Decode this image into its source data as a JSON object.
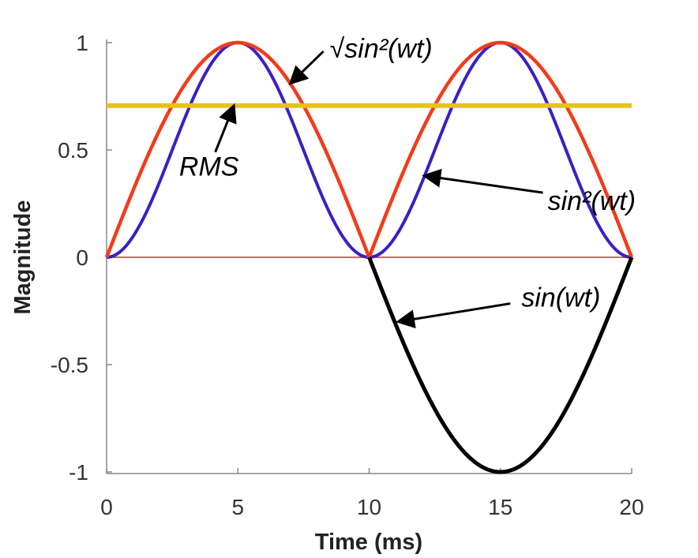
{
  "chart_data": {
    "type": "line",
    "xlabel": "Time (ms)",
    "ylabel": "Magnitude",
    "xlim": [
      0,
      20
    ],
    "ylim": [
      -1,
      1
    ],
    "x_ticks": [
      "0",
      "5",
      "10",
      "15",
      "20"
    ],
    "y_ticks": [
      "1",
      "0.5",
      "0",
      "-0.5",
      "-1"
    ],
    "period_ms": 20,
    "grid": false,
    "series": [
      {
        "name": "sin(wt)",
        "color": "#000000",
        "x": [
          10,
          10.5,
          11,
          11.5,
          12,
          12.5,
          13,
          13.5,
          14,
          14.5,
          15,
          15.5,
          16,
          16.5,
          17,
          17.5,
          18,
          18.5,
          19,
          19.5,
          20
        ],
        "y": [
          0,
          -0.156,
          -0.309,
          -0.454,
          -0.588,
          -0.707,
          -0.809,
          -0.891,
          -0.951,
          -0.988,
          -1,
          -0.988,
          -0.951,
          -0.891,
          -0.809,
          -0.707,
          -0.588,
          -0.454,
          -0.309,
          -0.156,
          0
        ]
      },
      {
        "name": "sin²(wt)",
        "color": "#3b1fc4",
        "x": [
          0,
          1,
          2,
          3,
          4,
          5,
          6,
          7,
          8,
          9,
          10,
          11,
          12,
          13,
          14,
          15,
          16,
          17,
          18,
          19,
          20
        ],
        "y": [
          0,
          0.095,
          0.345,
          0.655,
          0.905,
          1,
          0.905,
          0.655,
          0.345,
          0.095,
          0,
          0.095,
          0.345,
          0.655,
          0.905,
          1,
          0.905,
          0.655,
          0.345,
          0.095,
          0
        ]
      },
      {
        "name": "√sin²(wt)",
        "color": "#f23b1a",
        "x": [
          0,
          1,
          2,
          3,
          4,
          5,
          6,
          7,
          8,
          9,
          10,
          11,
          12,
          13,
          14,
          15,
          16,
          17,
          18,
          19,
          20
        ],
        "y": [
          0,
          0.309,
          0.588,
          0.809,
          0.951,
          1,
          0.951,
          0.809,
          0.588,
          0.309,
          0,
          0.309,
          0.588,
          0.809,
          0.951,
          1,
          0.951,
          0.809,
          0.588,
          0.309,
          0
        ]
      },
      {
        "name": "RMS",
        "color": "#e8c21a",
        "x": [
          0,
          20
        ],
        "y": [
          0.707,
          0.707
        ]
      }
    ],
    "zero_line_color": "#c0392b",
    "annotations": [
      {
        "text": "√sin²(wt)",
        "series": "√sin²(wt)",
        "text_at": [
          8.5,
          0.93
        ],
        "arrow_to": [
          7,
          0.81
        ]
      },
      {
        "text": "RMS",
        "series": "RMS",
        "text_at": [
          3.9,
          0.38
        ],
        "arrow_to": [
          4.85,
          0.707
        ]
      },
      {
        "text": "sin²(wt)",
        "series": "sin²(wt)",
        "text_at": [
          16.8,
          0.22
        ],
        "arrow_to": [
          12.1,
          0.38
        ]
      },
      {
        "text": "sin(wt)",
        "series": "sin(wt)",
        "text_at": [
          15.8,
          -0.23
        ],
        "arrow_to": [
          11.1,
          -0.3
        ]
      }
    ]
  }
}
